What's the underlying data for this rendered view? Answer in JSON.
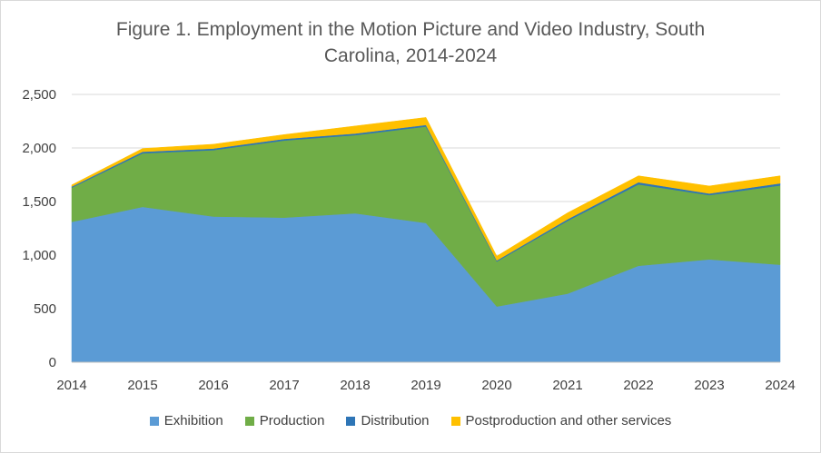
{
  "chart_data": {
    "type": "area",
    "stacked": true,
    "title": "Figure 1. Employment in the Motion Picture and Video Industry, South Carolina, 2014-2024",
    "title_lines": [
      "Figure 1. Employment in the Motion Picture and Video Industry, South",
      "Carolina, 2014-2024"
    ],
    "x": [
      "2014",
      "2015",
      "2016",
      "2017",
      "2018",
      "2019",
      "2020",
      "2021",
      "2022",
      "2023",
      "2024"
    ],
    "ylim": [
      0,
      2500
    ],
    "yticks": [
      0,
      500,
      1000,
      1500,
      2000,
      2500
    ],
    "ytick_labels": [
      "0",
      "500",
      "1,000",
      "1,500",
      "2,000",
      "2,500"
    ],
    "grid": true,
    "legend_position": "bottom",
    "series": [
      {
        "name": "Exhibition",
        "color": "#5b9bd5",
        "values": [
          1310,
          1450,
          1360,
          1350,
          1390,
          1300,
          520,
          640,
          900,
          960,
          910
        ]
      },
      {
        "name": "Production",
        "color": "#70ad47",
        "values": [
          320,
          500,
          620,
          720,
          730,
          900,
          420,
          680,
          760,
          600,
          740
        ]
      },
      {
        "name": "Distribution",
        "color": "#2e75b6",
        "values": [
          10,
          15,
          15,
          15,
          15,
          15,
          10,
          15,
          20,
          15,
          20
        ]
      },
      {
        "name": "Postproduction and other services",
        "color": "#ffc000",
        "values": [
          15,
          30,
          40,
          40,
          70,
          70,
          40,
          60,
          60,
          70,
          70
        ]
      }
    ]
  }
}
